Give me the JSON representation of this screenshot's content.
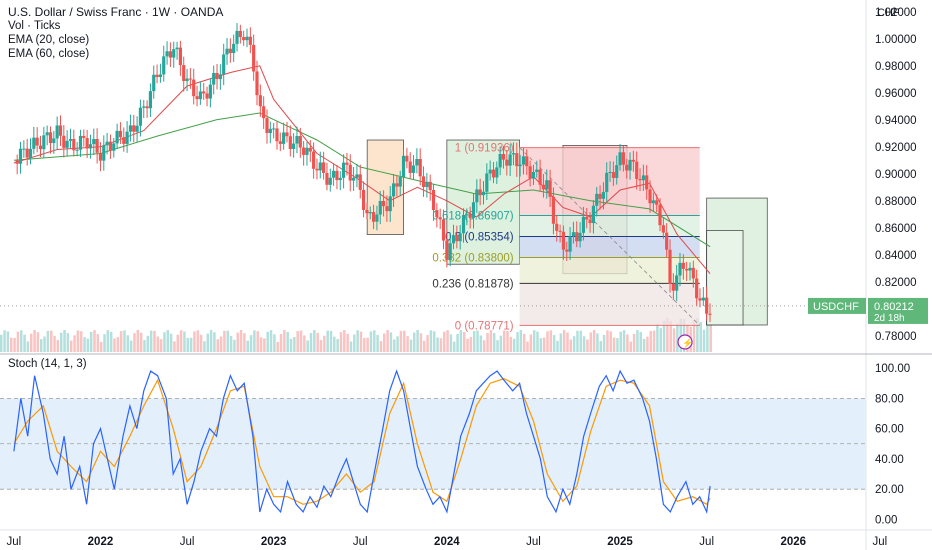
{
  "header": {
    "title": "U.S. Dollar / Swiss Franc · 1W · OANDA",
    "indicators": [
      "Vol · Ticks",
      "EMA (20, close)",
      "EMA (60, close)"
    ],
    "currency": "CHF"
  },
  "price_badge": {
    "symbol": "USDCHF",
    "price": "0.80212",
    "countdown": "2d 18h"
  },
  "stoch_legend": "Stoch (14, 1, 3)",
  "colors": {
    "up": "#26a69a",
    "down": "#ef5350",
    "ema20": "#e0494b",
    "ema60": "#43a047",
    "stoch_k": "#2962ff",
    "stoch_d": "#ff9800",
    "badge": "#5fb87a",
    "fib_fill": "#f8c9cc",
    "fib_green": "#d8eedd",
    "fib_blue": "#c6d3ee"
  },
  "chart_data": [
    {
      "type": "candlestick",
      "title": "U.S. Dollar / Swiss Franc · 1W · OANDA",
      "ylim": [
        0.768,
        1.025
      ],
      "y_ticks": [
        "1.02000",
        "1.00000",
        "0.98000",
        "0.96000",
        "0.94000",
        "0.92000",
        "0.90000",
        "0.88000",
        "0.86000",
        "0.84000",
        "0.82000",
        "0.80000",
        "0.78000"
      ],
      "x_ticks": [
        "Jul",
        "2022",
        "Jul",
        "2023",
        "Jul",
        "2024",
        "Jul",
        "2025",
        "Jul",
        "2026",
        "Jul"
      ],
      "last_price": 0.80212,
      "price_path": [
        [
          2021.5,
          0.91
        ],
        [
          2021.58,
          0.918
        ],
        [
          2021.67,
          0.925
        ],
        [
          2021.75,
          0.93
        ],
        [
          2021.83,
          0.92
        ],
        [
          2021.92,
          0.925
        ],
        [
          2022.0,
          0.915
        ],
        [
          2022.08,
          0.925
        ],
        [
          2022.17,
          0.93
        ],
        [
          2022.25,
          0.948
        ],
        [
          2022.33,
          0.975
        ],
        [
          2022.42,
          0.995
        ],
        [
          2022.5,
          0.968
        ],
        [
          2022.58,
          0.955
        ],
        [
          2022.67,
          0.972
        ],
        [
          2022.75,
          0.995
        ],
        [
          2022.83,
          1.005
        ],
        [
          2022.88,
          0.985
        ],
        [
          2022.92,
          0.945
        ],
        [
          2023.0,
          0.928
        ],
        [
          2023.08,
          0.925
        ],
        [
          2023.17,
          0.92
        ],
        [
          2023.25,
          0.905
        ],
        [
          2023.33,
          0.895
        ],
        [
          2023.42,
          0.905
        ],
        [
          2023.5,
          0.89
        ],
        [
          2023.54,
          0.866
        ],
        [
          2023.58,
          0.87
        ],
        [
          2023.67,
          0.88
        ],
        [
          2023.75,
          0.908
        ],
        [
          2023.83,
          0.905
        ],
        [
          2023.92,
          0.88
        ],
        [
          2024.0,
          0.842
        ],
        [
          2024.04,
          0.85
        ],
        [
          2024.08,
          0.86
        ],
        [
          2024.17,
          0.882
        ],
        [
          2024.25,
          0.9
        ],
        [
          2024.33,
          0.912
        ],
        [
          2024.42,
          0.91
        ],
        [
          2024.5,
          0.9
        ],
        [
          2024.58,
          0.89
        ],
        [
          2024.63,
          0.86
        ],
        [
          2024.67,
          0.845
        ],
        [
          2024.75,
          0.855
        ],
        [
          2024.83,
          0.87
        ],
        [
          2024.92,
          0.895
        ],
        [
          2025.0,
          0.91
        ],
        [
          2025.08,
          0.905
        ],
        [
          2025.17,
          0.885
        ],
        [
          2025.25,
          0.86
        ],
        [
          2025.29,
          0.815
        ],
        [
          2025.33,
          0.825
        ],
        [
          2025.38,
          0.835
        ],
        [
          2025.42,
          0.82
        ],
        [
          2025.46,
          0.808
        ],
        [
          2025.5,
          0.797
        ],
        [
          2025.52,
          0.802
        ]
      ],
      "ema20": [
        [
          2021.5,
          0.908
        ],
        [
          2021.75,
          0.918
        ],
        [
          2022.0,
          0.92
        ],
        [
          2022.25,
          0.932
        ],
        [
          2022.5,
          0.965
        ],
        [
          2022.75,
          0.975
        ],
        [
          2022.92,
          0.98
        ],
        [
          2023.0,
          0.955
        ],
        [
          2023.25,
          0.915
        ],
        [
          2023.5,
          0.895
        ],
        [
          2023.67,
          0.88
        ],
        [
          2023.83,
          0.89
        ],
        [
          2024.0,
          0.88
        ],
        [
          2024.17,
          0.868
        ],
        [
          2024.33,
          0.885
        ],
        [
          2024.5,
          0.898
        ],
        [
          2024.67,
          0.875
        ],
        [
          2024.83,
          0.868
        ],
        [
          2025.0,
          0.888
        ],
        [
          2025.17,
          0.893
        ],
        [
          2025.33,
          0.855
        ],
        [
          2025.52,
          0.826
        ]
      ],
      "ema60": [
        [
          2021.5,
          0.91
        ],
        [
          2022.0,
          0.915
        ],
        [
          2022.33,
          0.928
        ],
        [
          2022.67,
          0.94
        ],
        [
          2022.92,
          0.945
        ],
        [
          2023.25,
          0.925
        ],
        [
          2023.5,
          0.905
        ],
        [
          2023.83,
          0.895
        ],
        [
          2024.17,
          0.885
        ],
        [
          2024.5,
          0.888
        ],
        [
          2024.83,
          0.88
        ],
        [
          2025.17,
          0.874
        ],
        [
          2025.52,
          0.846
        ]
      ],
      "boxes": [
        {
          "x0": 2023.54,
          "x1": 2023.75,
          "y0": 0.855,
          "y1": 0.925,
          "fill": "#fde0c4",
          "stroke": "#333333"
        },
        {
          "x0": 2024.0,
          "x1": 2024.42,
          "y0": 0.833,
          "y1": 0.925,
          "fill": "#d8efd9",
          "stroke": "#333333"
        },
        {
          "x0": 2024.67,
          "x1": 2025.04,
          "y0": 0.826,
          "y1": 0.921,
          "fill": "#f0d8d8",
          "stroke": "#333333"
        }
      ],
      "fib": {
        "x0": 2024.42,
        "x1": 2025.46,
        "levels": [
          {
            "ratio": "1",
            "value": 0.91936,
            "label": "1 (0.91936)",
            "color": "#e57373"
          },
          {
            "ratio": "0.618",
            "value": 0.86907,
            "label": "0.618 (0.86907)",
            "color": "#26a69a"
          },
          {
            "ratio": "0.5",
            "value": 0.85354,
            "label": "0.5 (0.85354)",
            "color": "#1e3a8a"
          },
          {
            "ratio": "0.382",
            "value": 0.838,
            "label": "0.382 (0.83800)",
            "color": "#9e9d24"
          },
          {
            "ratio": "0.236",
            "value": 0.81878,
            "label": "0.236 (0.81878)",
            "color": "#333333"
          },
          {
            "ratio": "0",
            "value": 0.78771,
            "label": "0 (0.78771)",
            "color": "#e57373"
          }
        ]
      },
      "projection_boxes": [
        {
          "x0": 2025.5,
          "x1": 2025.85,
          "y0": 0.788,
          "y1": 0.882,
          "fill": "#dcefdc",
          "stroke": "#333333"
        },
        {
          "x0": 2025.5,
          "x1": 2025.71,
          "y0": 0.788,
          "y1": 0.858,
          "fill": "#eaf5ea",
          "stroke": "#333333"
        }
      ]
    },
    {
      "type": "line",
      "title": "Stoch (14, 1, 3)",
      "ylim": [
        -5,
        108
      ],
      "y_ticks": [
        "100.00",
        "80.00",
        "60.00",
        "40.00",
        "20.00",
        "0.00"
      ],
      "band": [
        20,
        80
      ],
      "stoch_k": [
        [
          2021.5,
          45
        ],
        [
          2021.54,
          80
        ],
        [
          2021.58,
          55
        ],
        [
          2021.62,
          95
        ],
        [
          2021.67,
          70
        ],
        [
          2021.71,
          40
        ],
        [
          2021.75,
          30
        ],
        [
          2021.79,
          55
        ],
        [
          2021.83,
          20
        ],
        [
          2021.88,
          35
        ],
        [
          2021.92,
          10
        ],
        [
          2021.96,
          50
        ],
        [
          2022.0,
          60
        ],
        [
          2022.04,
          40
        ],
        [
          2022.08,
          20
        ],
        [
          2022.13,
          55
        ],
        [
          2022.17,
          75
        ],
        [
          2022.21,
          60
        ],
        [
          2022.25,
          85
        ],
        [
          2022.29,
          98
        ],
        [
          2022.33,
          95
        ],
        [
          2022.38,
          80
        ],
        [
          2022.42,
          30
        ],
        [
          2022.46,
          40
        ],
        [
          2022.5,
          10
        ],
        [
          2022.54,
          25
        ],
        [
          2022.58,
          45
        ],
        [
          2022.63,
          60
        ],
        [
          2022.67,
          55
        ],
        [
          2022.71,
          80
        ],
        [
          2022.75,
          95
        ],
        [
          2022.79,
          85
        ],
        [
          2022.83,
          90
        ],
        [
          2022.88,
          55
        ],
        [
          2022.92,
          5
        ],
        [
          2022.96,
          20
        ],
        [
          2023.0,
          10
        ],
        [
          2023.04,
          5
        ],
        [
          2023.08,
          25
        ],
        [
          2023.13,
          10
        ],
        [
          2023.17,
          5
        ],
        [
          2023.21,
          15
        ],
        [
          2023.25,
          8
        ],
        [
          2023.29,
          22
        ],
        [
          2023.33,
          15
        ],
        [
          2023.38,
          30
        ],
        [
          2023.42,
          40
        ],
        [
          2023.46,
          25
        ],
        [
          2023.5,
          10
        ],
        [
          2023.54,
          5
        ],
        [
          2023.58,
          30
        ],
        [
          2023.63,
          60
        ],
        [
          2023.67,
          85
        ],
        [
          2023.71,
          98
        ],
        [
          2023.75,
          85
        ],
        [
          2023.79,
          60
        ],
        [
          2023.83,
          35
        ],
        [
          2023.88,
          20
        ],
        [
          2023.92,
          10
        ],
        [
          2023.96,
          15
        ],
        [
          2024.0,
          5
        ],
        [
          2024.04,
          30
        ],
        [
          2024.08,
          55
        ],
        [
          2024.13,
          70
        ],
        [
          2024.17,
          85
        ],
        [
          2024.21,
          90
        ],
        [
          2024.25,
          95
        ],
        [
          2024.29,
          98
        ],
        [
          2024.33,
          92
        ],
        [
          2024.38,
          85
        ],
        [
          2024.42,
          90
        ],
        [
          2024.46,
          70
        ],
        [
          2024.5,
          55
        ],
        [
          2024.54,
          40
        ],
        [
          2024.58,
          15
        ],
        [
          2024.63,
          5
        ],
        [
          2024.67,
          20
        ],
        [
          2024.71,
          10
        ],
        [
          2024.75,
          30
        ],
        [
          2024.79,
          55
        ],
        [
          2024.83,
          70
        ],
        [
          2024.88,
          88
        ],
        [
          2024.92,
          95
        ],
        [
          2024.96,
          85
        ],
        [
          2025.0,
          98
        ],
        [
          2025.04,
          90
        ],
        [
          2025.08,
          92
        ],
        [
          2025.13,
          80
        ],
        [
          2025.17,
          65
        ],
        [
          2025.21,
          40
        ],
        [
          2025.25,
          10
        ],
        [
          2025.29,
          5
        ],
        [
          2025.33,
          15
        ],
        [
          2025.38,
          25
        ],
        [
          2025.42,
          10
        ],
        [
          2025.46,
          15
        ],
        [
          2025.5,
          5
        ],
        [
          2025.52,
          22
        ]
      ],
      "stoch_d": [
        [
          2021.5,
          50
        ],
        [
          2021.58,
          65
        ],
        [
          2021.67,
          75
        ],
        [
          2021.75,
          45
        ],
        [
          2021.83,
          35
        ],
        [
          2021.92,
          25
        ],
        [
          2022.0,
          45
        ],
        [
          2022.08,
          35
        ],
        [
          2022.17,
          55
        ],
        [
          2022.25,
          75
        ],
        [
          2022.33,
          92
        ],
        [
          2022.42,
          60
        ],
        [
          2022.5,
          25
        ],
        [
          2022.58,
          35
        ],
        [
          2022.67,
          60
        ],
        [
          2022.75,
          85
        ],
        [
          2022.83,
          88
        ],
        [
          2022.92,
          35
        ],
        [
          2023.0,
          15
        ],
        [
          2023.08,
          15
        ],
        [
          2023.17,
          10
        ],
        [
          2023.25,
          12
        ],
        [
          2023.33,
          18
        ],
        [
          2023.42,
          30
        ],
        [
          2023.5,
          18
        ],
        [
          2023.58,
          25
        ],
        [
          2023.67,
          70
        ],
        [
          2023.75,
          90
        ],
        [
          2023.83,
          50
        ],
        [
          2023.92,
          18
        ],
        [
          2024.0,
          12
        ],
        [
          2024.08,
          40
        ],
        [
          2024.17,
          75
        ],
        [
          2024.25,
          90
        ],
        [
          2024.33,
          93
        ],
        [
          2024.42,
          88
        ],
        [
          2024.5,
          65
        ],
        [
          2024.58,
          30
        ],
        [
          2024.67,
          12
        ],
        [
          2024.75,
          22
        ],
        [
          2024.83,
          58
        ],
        [
          2024.92,
          88
        ],
        [
          2025.0,
          92
        ],
        [
          2025.08,
          90
        ],
        [
          2025.17,
          75
        ],
        [
          2025.25,
          25
        ],
        [
          2025.33,
          12
        ],
        [
          2025.42,
          15
        ],
        [
          2025.5,
          10
        ],
        [
          2025.52,
          14
        ]
      ]
    }
  ]
}
